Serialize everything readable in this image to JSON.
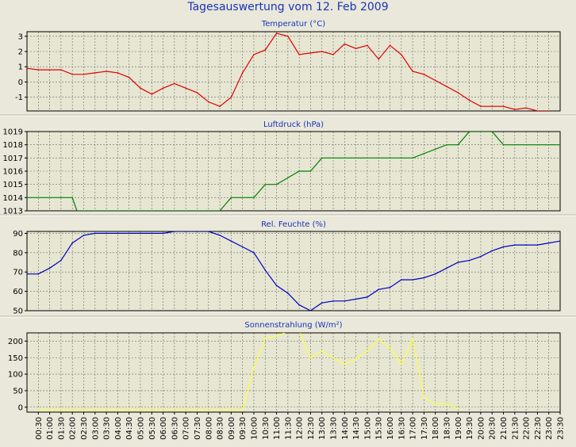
{
  "title": "Tagesauswertung vom 12. Feb 2009",
  "x_labels": [
    "00:30",
    "01:00",
    "01:30",
    "02:00",
    "02:30",
    "03:00",
    "03:30",
    "04:00",
    "04:30",
    "05:00",
    "05:30",
    "06:00",
    "06:30",
    "07:00",
    "07:30",
    "08:00",
    "08:30",
    "09:00",
    "09:30",
    "10:00",
    "10:30",
    "11:00",
    "11:30",
    "12:00",
    "12:30",
    "13:00",
    "13:30",
    "14:00",
    "14:30",
    "15:00",
    "15:30",
    "16:00",
    "16:30",
    "17:00",
    "17:30",
    "18:00",
    "18:30",
    "19:00",
    "19:30",
    "20:00",
    "20:30",
    "21:00",
    "21:30",
    "22:00",
    "22:30",
    "23:00",
    "23:30"
  ],
  "chart_data": [
    {
      "type": "line",
      "title": "Temperatur (°C)",
      "color": "#e00000",
      "ylim": [
        -1.9,
        3.3
      ],
      "yticks": [
        "-1",
        "0",
        "1",
        "2",
        "3"
      ],
      "ytick_values": [
        -1,
        0,
        1,
        2,
        3
      ],
      "x": [
        0.0,
        0.5,
        1.0,
        1.5,
        2.0,
        2.5,
        3.0,
        3.5,
        4.0,
        4.5,
        5.0,
        5.5,
        6.0,
        6.5,
        7.0,
        7.5,
        8.0,
        8.5,
        9.0,
        9.5,
        10.0,
        10.5,
        11.0,
        11.5,
        12.0,
        12.5,
        13.0,
        13.5,
        14.0,
        14.5,
        15.0,
        15.5,
        16.0,
        16.5,
        17.0,
        17.5,
        18.0,
        18.5,
        19.0,
        19.5,
        20.0,
        20.5,
        21.0,
        21.5,
        22.0,
        22.5,
        23.0
      ],
      "values": [
        0.9,
        0.8,
        0.8,
        0.8,
        0.5,
        0.5,
        0.6,
        0.7,
        0.6,
        0.3,
        -0.4,
        -0.8,
        -0.4,
        -0.1,
        -0.4,
        -0.7,
        -1.3,
        -1.6,
        -1.0,
        0.6,
        1.8,
        2.1,
        3.2,
        3.0,
        1.8,
        1.9,
        2.0,
        1.8,
        2.5,
        2.2,
        2.4,
        1.5,
        2.4,
        1.8,
        0.7,
        0.5,
        0.1,
        -0.3,
        -0.7,
        -1.2,
        -1.6,
        -1.6,
        -1.6,
        -1.8,
        -1.7,
        -1.9,
        -1.9
      ]
    },
    {
      "type": "line",
      "title": "Luftdruck (hPa)",
      "color": "#008000",
      "ylim": [
        1013,
        1019
      ],
      "yticks": [
        "1013",
        "1014",
        "1015",
        "1016",
        "1017",
        "1018",
        "1019"
      ],
      "ytick_values": [
        1013,
        1014,
        1015,
        1016,
        1017,
        1018,
        1019
      ],
      "x": [
        0.0,
        1.5,
        2.0,
        2.2,
        8.0,
        8.5,
        9.0,
        10.0,
        10.5,
        11.0,
        12.0,
        12.5,
        13.0,
        16.0,
        16.5,
        17.0,
        18.5,
        19.0,
        19.5,
        20.5,
        21.0,
        23.5
      ],
      "values": [
        1014,
        1014,
        1014,
        1013,
        1013,
        1013,
        1014,
        1014,
        1015,
        1015,
        1016,
        1016,
        1017,
        1017,
        1017,
        1017,
        1018,
        1018,
        1019,
        1019,
        1018,
        1018
      ]
    },
    {
      "type": "line",
      "title": "Rel. Feuchte (%)",
      "color": "#0000c0",
      "ylim": [
        50,
        91
      ],
      "yticks": [
        "50",
        "60",
        "70",
        "80",
        "90"
      ],
      "ytick_values": [
        50,
        60,
        70,
        80,
        90
      ],
      "x": [
        0.0,
        0.5,
        1.0,
        1.5,
        2.0,
        2.5,
        3.0,
        4.0,
        5.0,
        6.0,
        6.5,
        7.0,
        7.5,
        8.0,
        8.5,
        9.0,
        9.5,
        10.0,
        10.5,
        11.0,
        11.5,
        12.0,
        12.5,
        13.0,
        13.5,
        14.0,
        14.5,
        15.0,
        15.5,
        16.0,
        16.5,
        17.0,
        17.5,
        18.0,
        18.5,
        19.0,
        19.5,
        20.0,
        20.5,
        21.0,
        21.5,
        22.0,
        22.5,
        23.0,
        23.5
      ],
      "values": [
        69,
        69,
        72,
        76,
        85,
        89,
        90,
        90,
        90,
        90,
        91,
        91,
        91,
        91,
        89,
        86,
        83,
        80,
        71,
        63,
        59,
        53,
        50,
        54,
        55,
        55,
        56,
        57,
        61,
        62,
        66,
        66,
        67,
        69,
        72,
        75,
        76,
        78,
        81,
        83,
        84,
        84,
        84,
        85,
        86
      ]
    },
    {
      "type": "line",
      "title": "Sonnenstrahlung (W/m²)",
      "color": "#ffff40",
      "ylim": [
        -15,
        225
      ],
      "yticks": [
        "0",
        "50",
        "100",
        "150",
        "200"
      ],
      "ytick_values": [
        0,
        50,
        100,
        150,
        200
      ],
      "x": [
        0.5,
        1.0,
        2.0,
        3.0,
        4.0,
        4.5,
        9.0,
        9.5,
        10.0,
        10.5,
        11.0,
        11.5,
        12.0,
        12.5,
        13.0,
        13.5,
        14.0,
        14.5,
        15.0,
        15.5,
        16.0,
        16.5,
        17.0,
        17.5,
        18.0,
        18.5,
        19.0
      ],
      "values": [
        -8,
        -8,
        -8,
        -8,
        -8,
        -8,
        -8,
        -8,
        120,
        210,
        215,
        230,
        230,
        150,
        170,
        150,
        130,
        145,
        170,
        205,
        180,
        130,
        205,
        30,
        10,
        10,
        -5
      ]
    }
  ]
}
